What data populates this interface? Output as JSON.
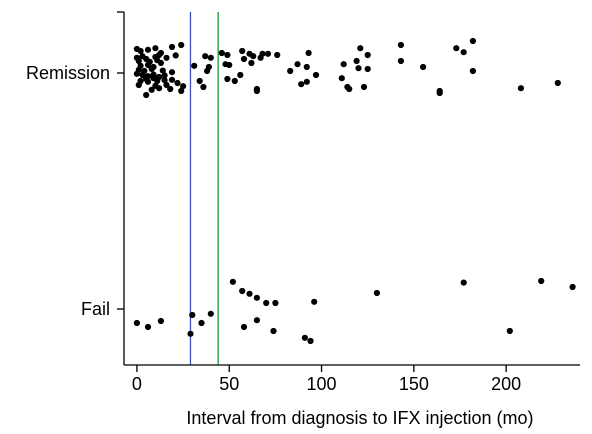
{
  "chart_data": {
    "type": "scatter",
    "title": "",
    "xlabel": "Interval from diagnosis to IFX injection (mo)",
    "ylabel": "",
    "xlim": [
      -7,
      240
    ],
    "x_ticks": [
      0,
      50,
      100,
      150,
      200
    ],
    "x_tick_labels": [
      "0",
      "50",
      "100",
      "150",
      "200"
    ],
    "categories": [
      "Fail",
      "Remission"
    ],
    "grid": false,
    "reference_lines": [
      {
        "x": 29,
        "color": "#3b4fc4"
      },
      {
        "x": 44,
        "color": "#1a9a3a"
      }
    ],
    "series": [
      {
        "category": "Remission",
        "points": [
          {
            "x": 0,
            "jitter": 0.6
          },
          {
            "x": 2,
            "jitter": 0.55
          },
          {
            "x": 6,
            "jitter": 0.58
          },
          {
            "x": 10,
            "jitter": 0.62
          },
          {
            "x": 13,
            "jitter": 0.5
          },
          {
            "x": 19,
            "jitter": 0.65
          },
          {
            "x": 24,
            "jitter": 0.7
          },
          {
            "x": 0,
            "jitter": 0.38
          },
          {
            "x": 3,
            "jitter": 0.42
          },
          {
            "x": 5,
            "jitter": 0.35
          },
          {
            "x": 10,
            "jitter": 0.4
          },
          {
            "x": 12,
            "jitter": 0.45
          },
          {
            "x": 16,
            "jitter": 0.38
          },
          {
            "x": 21,
            "jitter": 0.44
          },
          {
            "x": 1,
            "jitter": 0.3
          },
          {
            "x": 7,
            "jitter": 0.28
          },
          {
            "x": 11,
            "jitter": 0.32
          },
          {
            "x": 13,
            "jitter": 0.25
          },
          {
            "x": 2,
            "jitter": 0.18
          },
          {
            "x": 6,
            "jitter": 0.2
          },
          {
            "x": 9,
            "jitter": 0.15
          },
          {
            "x": 1,
            "jitter": 0.08
          },
          {
            "x": 4,
            "jitter": 0.05
          },
          {
            "x": 8,
            "jitter": 0.1
          },
          {
            "x": 14,
            "jitter": 0.06
          },
          {
            "x": 19,
            "jitter": 0.02
          },
          {
            "x": 0,
            "jitter": -0.02
          },
          {
            "x": 3,
            "jitter": -0.05
          },
          {
            "x": 6,
            "jitter": -0.08
          },
          {
            "x": 9,
            "jitter": -0.04
          },
          {
            "x": 12,
            "jitter": -0.1
          },
          {
            "x": 15,
            "jitter": -0.06
          },
          {
            "x": 5,
            "jitter": -0.15
          },
          {
            "x": 9,
            "jitter": -0.13
          },
          {
            "x": 2,
            "jitter": -0.2
          },
          {
            "x": 6,
            "jitter": -0.22
          },
          {
            "x": 11,
            "jitter": -0.2
          },
          {
            "x": 15,
            "jitter": -0.18
          },
          {
            "x": 19,
            "jitter": -0.17
          },
          {
            "x": 22,
            "jitter": -0.25
          },
          {
            "x": 10,
            "jitter": -0.32
          },
          {
            "x": 16,
            "jitter": -0.3
          },
          {
            "x": 25,
            "jitter": -0.33
          },
          {
            "x": 8,
            "jitter": -0.42
          },
          {
            "x": 12,
            "jitter": -0.38
          },
          {
            "x": 18,
            "jitter": -0.4
          },
          {
            "x": 24,
            "jitter": -0.45
          },
          {
            "x": 1,
            "jitter": -0.3
          },
          {
            "x": 5,
            "jitter": -0.55
          },
          {
            "x": 31,
            "jitter": 0.18
          },
          {
            "x": 34,
            "jitter": -0.2
          },
          {
            "x": 36,
            "jitter": -0.35
          },
          {
            "x": 38,
            "jitter": 0.05
          },
          {
            "x": 39,
            "jitter": 0.15
          },
          {
            "x": 37,
            "jitter": 0.42
          },
          {
            "x": 40,
            "jitter": 0.38
          },
          {
            "x": 46,
            "jitter": 0.5
          },
          {
            "x": 48,
            "jitter": 0.22
          },
          {
            "x": 50,
            "jitter": 0.2
          },
          {
            "x": 49,
            "jitter": 0.45
          },
          {
            "x": 49,
            "jitter": -0.15
          },
          {
            "x": 53,
            "jitter": -0.2
          },
          {
            "x": 56,
            "jitter": -0.05
          },
          {
            "x": 57,
            "jitter": 0.55
          },
          {
            "x": 58,
            "jitter": 0.35
          },
          {
            "x": 61,
            "jitter": 0.48
          },
          {
            "x": 62,
            "jitter": 0.25
          },
          {
            "x": 63,
            "jitter": 0.42
          },
          {
            "x": 65,
            "jitter": -0.4
          },
          {
            "x": 65,
            "jitter": -0.45
          },
          {
            "x": 67,
            "jitter": 0.38
          },
          {
            "x": 68,
            "jitter": 0.48
          },
          {
            "x": 71,
            "jitter": 0.48
          },
          {
            "x": 76,
            "jitter": 0.45
          },
          {
            "x": 83,
            "jitter": 0.05
          },
          {
            "x": 87,
            "jitter": 0.22
          },
          {
            "x": 89,
            "jitter": -0.28
          },
          {
            "x": 93,
            "jitter": 0.5
          },
          {
            "x": 92,
            "jitter": -0.22
          },
          {
            "x": 92,
            "jitter": 0.15
          },
          {
            "x": 97,
            "jitter": -0.05
          },
          {
            "x": 112,
            "jitter": 0.22
          },
          {
            "x": 114,
            "jitter": -0.35
          },
          {
            "x": 111,
            "jitter": -0.13
          },
          {
            "x": 115,
            "jitter": -0.4
          },
          {
            "x": 119,
            "jitter": 0.3
          },
          {
            "x": 120,
            "jitter": 0.12
          },
          {
            "x": 121,
            "jitter": 0.62
          },
          {
            "x": 125,
            "jitter": 0.45
          },
          {
            "x": 125,
            "jitter": 0.1
          },
          {
            "x": 123,
            "jitter": -0.35
          },
          {
            "x": 143,
            "jitter": 0.7
          },
          {
            "x": 143,
            "jitter": 0.3
          },
          {
            "x": 155,
            "jitter": 0.15
          },
          {
            "x": 164,
            "jitter": -0.5
          },
          {
            "x": 164,
            "jitter": -0.45
          },
          {
            "x": 173,
            "jitter": 0.62
          },
          {
            "x": 177,
            "jitter": 0.52
          },
          {
            "x": 182,
            "jitter": 0.8
          },
          {
            "x": 182,
            "jitter": 0.05
          },
          {
            "x": 208,
            "jitter": -0.38
          },
          {
            "x": 228,
            "jitter": -0.25
          }
        ]
      },
      {
        "category": "Fail",
        "points": [
          {
            "x": 0,
            "jitter": -0.35
          },
          {
            "x": 6,
            "jitter": -0.45
          },
          {
            "x": 13,
            "jitter": -0.3
          },
          {
            "x": 30,
            "jitter": -0.15
          },
          {
            "x": 29,
            "jitter": -0.62
          },
          {
            "x": 35,
            "jitter": -0.35
          },
          {
            "x": 40,
            "jitter": -0.12
          },
          {
            "x": 52,
            "jitter": 0.68
          },
          {
            "x": 57,
            "jitter": 0.45
          },
          {
            "x": 61,
            "jitter": 0.38
          },
          {
            "x": 65,
            "jitter": 0.28
          },
          {
            "x": 70,
            "jitter": 0.15
          },
          {
            "x": 75,
            "jitter": 0.15
          },
          {
            "x": 96,
            "jitter": 0.18
          },
          {
            "x": 58,
            "jitter": -0.45
          },
          {
            "x": 65,
            "jitter": -0.28
          },
          {
            "x": 74,
            "jitter": -0.55
          },
          {
            "x": 91,
            "jitter": -0.72
          },
          {
            "x": 94,
            "jitter": -0.8
          },
          {
            "x": 130,
            "jitter": 0.4
          },
          {
            "x": 177,
            "jitter": 0.66
          },
          {
            "x": 202,
            "jitter": -0.55
          },
          {
            "x": 219,
            "jitter": 0.7
          },
          {
            "x": 236,
            "jitter": 0.55
          }
        ]
      }
    ]
  }
}
